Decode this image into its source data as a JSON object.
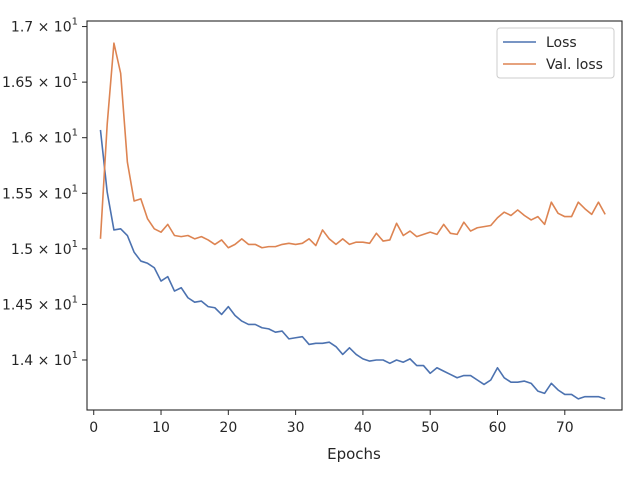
{
  "chart_data": {
    "type": "line",
    "title": "",
    "xlabel": "Epochs",
    "ylabel": "",
    "xlim": [
      -1,
      78.5
    ],
    "ylim": [
      13.55,
      17.05
    ],
    "x_ticks": [
      0,
      10,
      20,
      30,
      40,
      50,
      60,
      70
    ],
    "y_ticks": [
      {
        "value": 14.0,
        "label": "1.4"
      },
      {
        "value": 14.5,
        "label": "1.45"
      },
      {
        "value": 15.0,
        "label": "1.5"
      },
      {
        "value": 15.5,
        "label": "1.55"
      },
      {
        "value": 16.0,
        "label": "1.6"
      },
      {
        "value": 16.5,
        "label": "1.65"
      },
      {
        "value": 17.0,
        "label": "1.7"
      }
    ],
    "y_tick_suffix": "× 10",
    "y_tick_exponent": "1",
    "grid": false,
    "legend_position": "top-right",
    "series": [
      {
        "name": "Loss",
        "color": "#4c72b0",
        "x": [
          1,
          2,
          3,
          4,
          5,
          6,
          7,
          8,
          9,
          10,
          11,
          12,
          13,
          14,
          15,
          16,
          17,
          18,
          19,
          20,
          21,
          22,
          23,
          24,
          25,
          26,
          27,
          28,
          29,
          30,
          31,
          32,
          33,
          34,
          35,
          36,
          37,
          38,
          39,
          40,
          41,
          42,
          43,
          44,
          45,
          46,
          47,
          48,
          49,
          50,
          51,
          52,
          53,
          54,
          55,
          56,
          57,
          58,
          59,
          60,
          61,
          62,
          63,
          64,
          65,
          66,
          67,
          68,
          69,
          70,
          71,
          72,
          73,
          74,
          75,
          76
        ],
        "values": [
          16.07,
          15.51,
          15.17,
          15.18,
          15.12,
          14.97,
          14.89,
          14.87,
          14.83,
          14.71,
          14.75,
          14.62,
          14.65,
          14.56,
          14.52,
          14.53,
          14.48,
          14.47,
          14.41,
          14.48,
          14.4,
          14.35,
          14.32,
          14.32,
          14.29,
          14.28,
          14.25,
          14.26,
          14.19,
          14.2,
          14.21,
          14.14,
          14.15,
          14.15,
          14.16,
          14.12,
          14.05,
          14.11,
          14.05,
          14.01,
          13.99,
          14.0,
          14.0,
          13.97,
          14.0,
          13.98,
          14.01,
          13.95,
          13.95,
          13.88,
          13.93,
          13.9,
          13.87,
          13.84,
          13.86,
          13.86,
          13.82,
          13.78,
          13.82,
          13.93,
          13.84,
          13.8,
          13.8,
          13.81,
          13.79,
          13.72,
          13.7,
          13.79,
          13.73,
          13.69,
          13.69,
          13.65,
          13.67,
          13.67,
          13.67,
          13.65
        ]
      },
      {
        "name": "Val. loss",
        "color": "#dd8452",
        "x": [
          1,
          2,
          3,
          4,
          5,
          6,
          7,
          8,
          9,
          10,
          11,
          12,
          13,
          14,
          15,
          16,
          17,
          18,
          19,
          20,
          21,
          22,
          23,
          24,
          25,
          26,
          27,
          28,
          29,
          30,
          31,
          32,
          33,
          34,
          35,
          36,
          37,
          38,
          39,
          40,
          41,
          42,
          43,
          44,
          45,
          46,
          47,
          48,
          49,
          50,
          51,
          52,
          53,
          54,
          55,
          56,
          57,
          58,
          59,
          60,
          61,
          62,
          63,
          64,
          65,
          66,
          67,
          68,
          69,
          70,
          71,
          72,
          73,
          74,
          75,
          76
        ],
        "values": [
          15.09,
          16.12,
          16.85,
          16.58,
          15.78,
          15.43,
          15.45,
          15.27,
          15.18,
          15.15,
          15.22,
          15.12,
          15.11,
          15.12,
          15.09,
          15.11,
          15.08,
          15.04,
          15.08,
          15.01,
          15.04,
          15.09,
          15.04,
          15.04,
          15.01,
          15.02,
          15.02,
          15.04,
          15.05,
          15.04,
          15.05,
          15.09,
          15.03,
          15.17,
          15.09,
          15.04,
          15.09,
          15.04,
          15.06,
          15.06,
          15.05,
          15.14,
          15.07,
          15.08,
          15.23,
          15.12,
          15.16,
          15.11,
          15.13,
          15.15,
          15.13,
          15.22,
          15.14,
          15.13,
          15.24,
          15.16,
          15.19,
          15.2,
          15.21,
          15.28,
          15.33,
          15.3,
          15.35,
          15.3,
          15.26,
          15.29,
          15.22,
          15.42,
          15.32,
          15.29,
          15.29,
          15.42,
          15.36,
          15.31,
          15.42,
          15.31
        ]
      }
    ]
  }
}
